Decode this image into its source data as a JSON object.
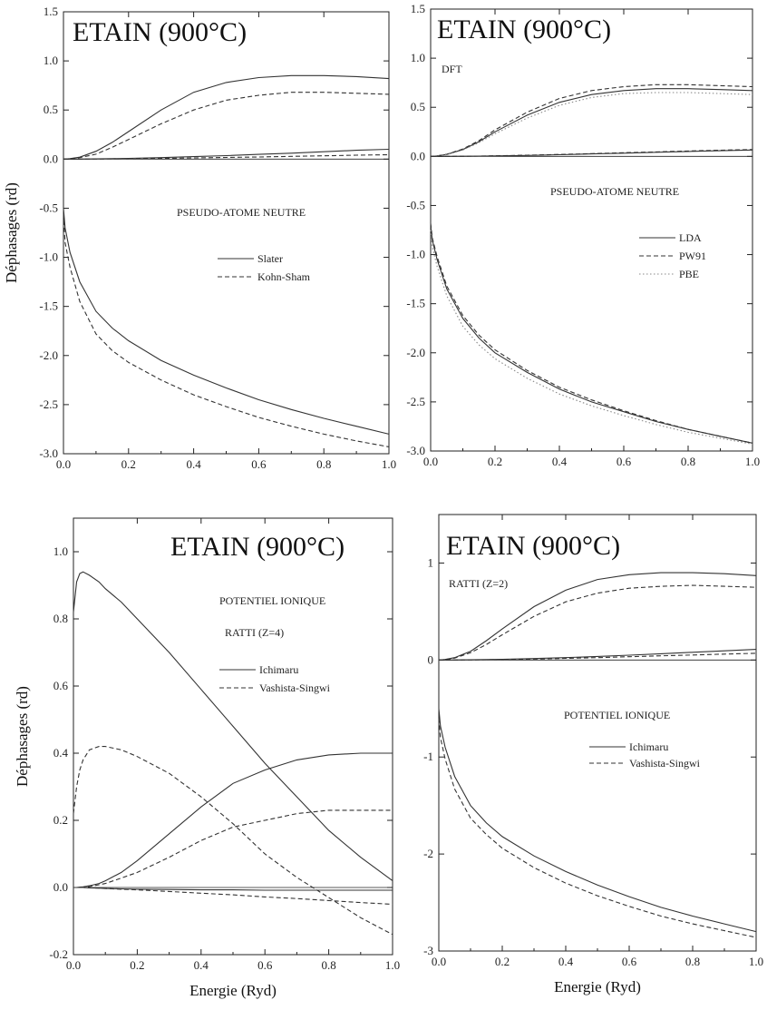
{
  "chart_data": [
    {
      "type": "line",
      "title": "ETAIN (900°C)",
      "annotations": [
        "PSEUDO-ATOME NEUTRE"
      ],
      "ylabel": "Déphasages (rd)",
      "xlabel": "",
      "xlim": [
        0.0,
        1.0
      ],
      "ylim": [
        -3.0,
        1.5
      ],
      "xticks": [
        "0.0",
        "0.2",
        "0.4",
        "0.6",
        "0.8",
        "1.0"
      ],
      "yticks": [
        "1.5",
        "1.0",
        "0.5",
        "0.0",
        "-0.5",
        "-1.0",
        "-1.5",
        "-2.0",
        "-2.5",
        "-3.0"
      ],
      "legend_position": "center-right",
      "x": [
        0.0,
        0.005,
        0.02,
        0.05,
        0.1,
        0.15,
        0.2,
        0.3,
        0.4,
        0.5,
        0.6,
        0.7,
        0.8,
        0.9,
        1.0
      ],
      "series": [
        {
          "name": "Slater",
          "style": "solid",
          "values": [
            -0.5,
            -0.7,
            -0.95,
            -1.25,
            -1.55,
            -1.72,
            -1.85,
            -2.05,
            -2.2,
            -2.33,
            -2.45,
            -2.55,
            -2.64,
            -2.72,
            -2.8
          ]
        },
        {
          "name": "Kohn-Sham",
          "style": "dashed",
          "values": [
            -0.55,
            -0.85,
            -1.1,
            -1.45,
            -1.78,
            -1.95,
            -2.07,
            -2.25,
            -2.4,
            -2.52,
            -2.63,
            -2.72,
            -2.8,
            -2.87,
            -2.93
          ]
        },
        {
          "name": "",
          "style": "solid",
          "values": [
            0.0,
            0.0,
            0.005,
            0.02,
            0.08,
            0.17,
            0.28,
            0.5,
            0.68,
            0.78,
            0.83,
            0.85,
            0.85,
            0.84,
            0.82
          ]
        },
        {
          "name": "",
          "style": "dashed",
          "values": [
            0.0,
            0.0,
            0.004,
            0.015,
            0.05,
            0.12,
            0.2,
            0.36,
            0.5,
            0.6,
            0.65,
            0.68,
            0.68,
            0.67,
            0.66
          ]
        },
        {
          "name": "",
          "style": "solid",
          "values": [
            0.0,
            0.0,
            0.0,
            0.0,
            0.002,
            0.005,
            0.008,
            0.015,
            0.025,
            0.035,
            0.048,
            0.06,
            0.075,
            0.09,
            0.1
          ]
        },
        {
          "name": "",
          "style": "dashed",
          "values": [
            0.0,
            0.0,
            0.0,
            0.0,
            0.001,
            0.002,
            0.004,
            0.007,
            0.012,
            0.017,
            0.022,
            0.028,
            0.034,
            0.04,
            0.045
          ]
        }
      ]
    },
    {
      "type": "line",
      "title": "ETAIN (900°C)",
      "annotations": [
        "DFT",
        "PSEUDO-ATOME NEUTRE"
      ],
      "xlabel": "",
      "ylabel": "",
      "xlim": [
        0.0,
        1.0
      ],
      "ylim": [
        -3.0,
        1.5
      ],
      "xticks": [
        "0.0",
        "0.2",
        "0.4",
        "0.6",
        "0.8",
        "1.0"
      ],
      "yticks": [
        "1.5",
        "1.0",
        "0.5",
        "0.0",
        "-0.5",
        "-1.0",
        "-1.5",
        "-2.0",
        "-2.5",
        "-3.0"
      ],
      "legend_position": "center-right",
      "x": [
        0.0,
        0.005,
        0.02,
        0.05,
        0.1,
        0.15,
        0.2,
        0.3,
        0.4,
        0.5,
        0.6,
        0.7,
        0.8,
        0.9,
        1.0
      ],
      "series": [
        {
          "name": "LDA",
          "style": "solid",
          "values": [
            -0.7,
            -0.85,
            -1.05,
            -1.35,
            -1.65,
            -1.85,
            -2.0,
            -2.2,
            -2.37,
            -2.5,
            -2.6,
            -2.7,
            -2.78,
            -2.85,
            -2.92
          ]
        },
        {
          "name": "PW91",
          "style": "dashed",
          "values": [
            -0.68,
            -0.83,
            -1.02,
            -1.32,
            -1.62,
            -1.82,
            -1.97,
            -2.18,
            -2.35,
            -2.48,
            -2.59,
            -2.69,
            -2.78,
            -2.85,
            -2.92
          ]
        },
        {
          "name": "PBE",
          "style": "dotted",
          "values": [
            -0.75,
            -0.92,
            -1.12,
            -1.42,
            -1.73,
            -1.92,
            -2.06,
            -2.26,
            -2.42,
            -2.54,
            -2.64,
            -2.73,
            -2.81,
            -2.87,
            -2.93
          ]
        },
        {
          "name": "",
          "style": "solid",
          "values": [
            0.0,
            0.0,
            0.005,
            0.02,
            0.07,
            0.15,
            0.25,
            0.42,
            0.55,
            0.63,
            0.67,
            0.69,
            0.69,
            0.68,
            0.67
          ]
        },
        {
          "name": "",
          "style": "dashed",
          "values": [
            0.0,
            0.0,
            0.005,
            0.022,
            0.075,
            0.16,
            0.27,
            0.45,
            0.59,
            0.67,
            0.71,
            0.73,
            0.73,
            0.72,
            0.71
          ]
        },
        {
          "name": "",
          "style": "dotted",
          "values": [
            0.0,
            0.0,
            0.004,
            0.018,
            0.065,
            0.14,
            0.23,
            0.39,
            0.52,
            0.6,
            0.64,
            0.65,
            0.65,
            0.64,
            0.63
          ]
        },
        {
          "name": "",
          "style": "solid",
          "values": [
            0.0,
            0.0,
            0.0,
            0.0,
            0.001,
            0.003,
            0.005,
            0.01,
            0.017,
            0.025,
            0.033,
            0.042,
            0.05,
            0.058,
            0.065
          ]
        },
        {
          "name": "",
          "style": "dashed",
          "values": [
            0.0,
            0.0,
            0.0,
            0.0,
            0.001,
            0.003,
            0.006,
            0.012,
            0.02,
            0.028,
            0.037,
            0.046,
            0.055,
            0.063,
            0.07
          ]
        }
      ]
    },
    {
      "type": "line",
      "title": "ETAIN (900°C)",
      "annotations": [
        "POTENTIEL IONIQUE",
        "RATTI (Z=4)"
      ],
      "xlabel": "Energie (Ryd)",
      "ylabel": "Déphasages (rd)",
      "xlim": [
        0.0,
        1.0
      ],
      "ylim": [
        -0.2,
        1.1
      ],
      "xticks": [
        "0.0",
        "0.2",
        "0.4",
        "0.6",
        "0.8",
        "1.0"
      ],
      "yticks": [
        "1.0",
        "0.8",
        "0.6",
        "0.4",
        "0.2",
        "0.0",
        "-0.2"
      ],
      "legend_position": "center-right",
      "x": [
        0.0,
        0.01,
        0.02,
        0.03,
        0.05,
        0.08,
        0.1,
        0.15,
        0.2,
        0.3,
        0.4,
        0.5,
        0.6,
        0.7,
        0.8,
        0.9,
        1.0
      ],
      "series": [
        {
          "name": "Ichimaru",
          "style": "solid",
          "values": [
            0.82,
            0.91,
            0.935,
            0.94,
            0.93,
            0.91,
            0.89,
            0.85,
            0.8,
            0.7,
            0.59,
            0.48,
            0.37,
            0.27,
            0.17,
            0.09,
            0.02
          ]
        },
        {
          "name": "Vashista-Singwi",
          "style": "dashed",
          "values": [
            0.22,
            0.3,
            0.35,
            0.38,
            0.41,
            0.42,
            0.42,
            0.41,
            0.39,
            0.34,
            0.27,
            0.19,
            0.1,
            0.03,
            -0.03,
            -0.09,
            -0.14
          ]
        },
        {
          "name": "",
          "style": "solid",
          "values": [
            0.0,
            0.0,
            0.001,
            0.002,
            0.005,
            0.012,
            0.02,
            0.045,
            0.08,
            0.16,
            0.24,
            0.31,
            0.35,
            0.38,
            0.395,
            0.4,
            0.4
          ]
        },
        {
          "name": "",
          "style": "dashed",
          "values": [
            0.0,
            0.0,
            0.0,
            0.001,
            0.003,
            0.008,
            0.012,
            0.028,
            0.045,
            0.09,
            0.14,
            0.18,
            0.2,
            0.22,
            0.23,
            0.23,
            0.23
          ]
        },
        {
          "name": "",
          "style": "solid",
          "values": [
            0.0,
            0.0,
            0.0,
            0.0,
            -0.001,
            -0.002,
            -0.003,
            -0.004,
            -0.005,
            -0.006,
            -0.007,
            -0.007,
            -0.008,
            -0.008,
            -0.008,
            -0.008,
            -0.008
          ]
        },
        {
          "name": "",
          "style": "dashed",
          "values": [
            0.0,
            0.0,
            0.0,
            0.0,
            -0.001,
            -0.002,
            -0.003,
            -0.005,
            -0.007,
            -0.012,
            -0.017,
            -0.022,
            -0.028,
            -0.033,
            -0.039,
            -0.045,
            -0.05
          ]
        }
      ]
    },
    {
      "type": "line",
      "title": "ETAIN (900°C)",
      "annotations": [
        "RATTI (Z=2)",
        "POTENTIEL IONIQUE"
      ],
      "xlabel": "Energie (Ryd)",
      "ylabel": "",
      "xlim": [
        0.0,
        1.0
      ],
      "ylim": [
        -3.0,
        1.5
      ],
      "xticks": [
        "0.0",
        "0.2",
        "0.4",
        "0.6",
        "0.8",
        "1.0"
      ],
      "yticks": [
        "1",
        "0",
        "-1",
        "-2",
        "-3"
      ],
      "legend_position": "center-right",
      "x": [
        0.0,
        0.005,
        0.02,
        0.05,
        0.1,
        0.15,
        0.2,
        0.3,
        0.4,
        0.5,
        0.6,
        0.7,
        0.8,
        0.9,
        1.0
      ],
      "series": [
        {
          "name": "Ichimaru",
          "style": "solid",
          "values": [
            -0.5,
            -0.68,
            -0.9,
            -1.2,
            -1.5,
            -1.68,
            -1.82,
            -2.02,
            -2.18,
            -2.32,
            -2.44,
            -2.55,
            -2.64,
            -2.72,
            -2.8
          ]
        },
        {
          "name": "Vashista-Singwi",
          "style": "dashed",
          "values": [
            -0.6,
            -0.8,
            -1.02,
            -1.33,
            -1.63,
            -1.8,
            -1.94,
            -2.14,
            -2.3,
            -2.43,
            -2.54,
            -2.64,
            -2.72,
            -2.79,
            -2.86
          ]
        },
        {
          "name": "",
          "style": "solid",
          "values": [
            0.0,
            0.0,
            0.006,
            0.025,
            0.09,
            0.2,
            0.32,
            0.55,
            0.72,
            0.83,
            0.88,
            0.9,
            0.9,
            0.89,
            0.87
          ]
        },
        {
          "name": "",
          "style": "dashed",
          "values": [
            0.0,
            0.0,
            0.005,
            0.02,
            0.075,
            0.16,
            0.26,
            0.45,
            0.6,
            0.69,
            0.74,
            0.76,
            0.77,
            0.76,
            0.75
          ]
        },
        {
          "name": "",
          "style": "solid",
          "values": [
            0.0,
            0.0,
            0.0,
            0.0,
            0.002,
            0.005,
            0.008,
            0.015,
            0.025,
            0.037,
            0.05,
            0.065,
            0.08,
            0.095,
            0.11
          ]
        },
        {
          "name": "",
          "style": "dashed",
          "values": [
            0.0,
            0.0,
            0.0,
            0.0,
            0.001,
            0.003,
            0.005,
            0.01,
            0.017,
            0.025,
            0.034,
            0.043,
            0.052,
            0.061,
            0.07
          ]
        }
      ]
    }
  ]
}
